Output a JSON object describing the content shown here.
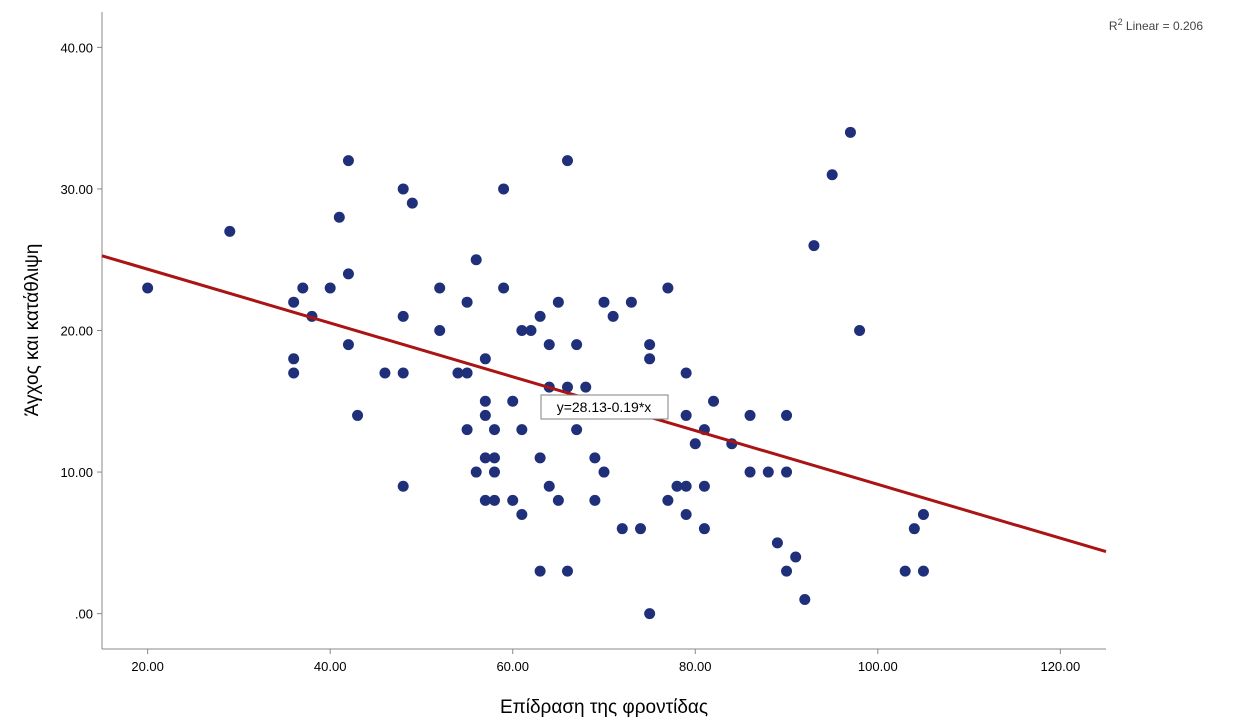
{
  "chart_data": {
    "type": "scatter",
    "xlabel": "Επίδραση της φροντίδας",
    "ylabel": "Άγχος και κατάθλιψη",
    "xlim": [
      15,
      125
    ],
    "ylim": [
      -2.5,
      42.5
    ],
    "x_ticks": [
      20,
      40,
      60,
      80,
      100,
      120
    ],
    "x_tick_labels": [
      "20.00",
      "40.00",
      "60.00",
      "80.00",
      "100.00",
      "120.00"
    ],
    "y_ticks": [
      0,
      10,
      20,
      30,
      40
    ],
    "y_tick_labels": [
      ".00",
      "10.00",
      "20.00",
      "30.00",
      "40.00"
    ],
    "grid": false,
    "point_color": "#1f2f7a",
    "line_color": "#aa1414",
    "fit": {
      "intercept": 28.13,
      "slope": -0.19,
      "equation_label": "y=28.13-0.19*x"
    },
    "r2_label": {
      "prefix": "R",
      "sup": "2",
      "suffix": " Linear = 0.206"
    },
    "points": [
      [
        20,
        23
      ],
      [
        29,
        27
      ],
      [
        36,
        22
      ],
      [
        36,
        18
      ],
      [
        36,
        17
      ],
      [
        37,
        23
      ],
      [
        38,
        21
      ],
      [
        40,
        23
      ],
      [
        41,
        28
      ],
      [
        42,
        32
      ],
      [
        42,
        24
      ],
      [
        42,
        19
      ],
      [
        43,
        14
      ],
      [
        46,
        17
      ],
      [
        48,
        30
      ],
      [
        48,
        21
      ],
      [
        48,
        17
      ],
      [
        48,
        9
      ],
      [
        49,
        29
      ],
      [
        52,
        23
      ],
      [
        52,
        20
      ],
      [
        54,
        17
      ],
      [
        55,
        22
      ],
      [
        55,
        17
      ],
      [
        55,
        13
      ],
      [
        56,
        25
      ],
      [
        56,
        10
      ],
      [
        57,
        18
      ],
      [
        57,
        15
      ],
      [
        57,
        14
      ],
      [
        57,
        11
      ],
      [
        57,
        8
      ],
      [
        58,
        13
      ],
      [
        58,
        11
      ],
      [
        58,
        10
      ],
      [
        58,
        8
      ],
      [
        59,
        30
      ],
      [
        59,
        23
      ],
      [
        60,
        15
      ],
      [
        60,
        8
      ],
      [
        61,
        20
      ],
      [
        61,
        13
      ],
      [
        61,
        7
      ],
      [
        62,
        20
      ],
      [
        63,
        21
      ],
      [
        63,
        11
      ],
      [
        63,
        3
      ],
      [
        64,
        19
      ],
      [
        64,
        16
      ],
      [
        64,
        9
      ],
      [
        65,
        22
      ],
      [
        65,
        8
      ],
      [
        66,
        32
      ],
      [
        66,
        16
      ],
      [
        66,
        3
      ],
      [
        67,
        19
      ],
      [
        67,
        13
      ],
      [
        68,
        16
      ],
      [
        69,
        11
      ],
      [
        69,
        8
      ],
      [
        70,
        22
      ],
      [
        70,
        10
      ],
      [
        71,
        21
      ],
      [
        72,
        6
      ],
      [
        73,
        22
      ],
      [
        74,
        6
      ],
      [
        75,
        19
      ],
      [
        75,
        18
      ],
      [
        75,
        0
      ],
      [
        77,
        23
      ],
      [
        77,
        8
      ],
      [
        78,
        9
      ],
      [
        79,
        17
      ],
      [
        79,
        14
      ],
      [
        79,
        9
      ],
      [
        79,
        7
      ],
      [
        80,
        12
      ],
      [
        81,
        13
      ],
      [
        81,
        9
      ],
      [
        81,
        6
      ],
      [
        82,
        15
      ],
      [
        84,
        12
      ],
      [
        86,
        14
      ],
      [
        86,
        10
      ],
      [
        88,
        10
      ],
      [
        89,
        5
      ],
      [
        90,
        14
      ],
      [
        90,
        10
      ],
      [
        90,
        3
      ],
      [
        91,
        4
      ],
      [
        92,
        1
      ],
      [
        93,
        26
      ],
      [
        95,
        31
      ],
      [
        97,
        34
      ],
      [
        98,
        20
      ],
      [
        103,
        3
      ],
      [
        104,
        6
      ],
      [
        105,
        7
      ],
      [
        105,
        3
      ]
    ]
  }
}
